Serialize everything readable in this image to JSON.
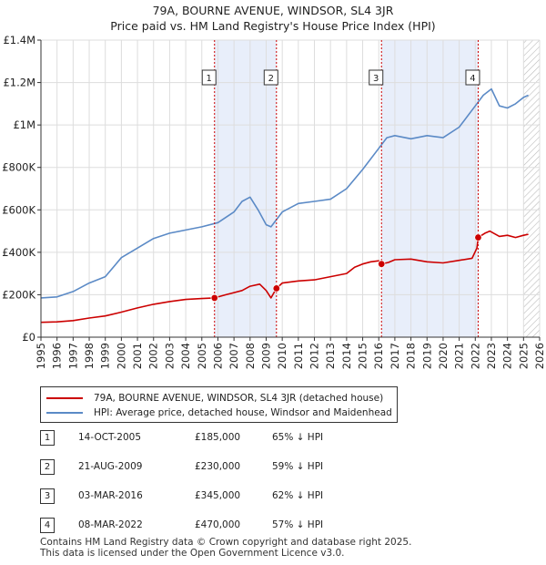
{
  "title": "79A, BOURNE AVENUE, WINDSOR, SL4 3JR",
  "subtitle": "Price paid vs. HM Land Registry's House Price Index (HPI)",
  "colors": {
    "price": "#cc0000",
    "hpi": "#5b8ac6",
    "shade": "#e8eefa"
  },
  "legend": [
    {
      "label": "79A, BOURNE AVENUE, WINDSOR, SL4 3JR (detached house)"
    },
    {
      "label": "HPI: Average price, detached house, Windsor and Maidenhead"
    }
  ],
  "sales": [
    {
      "num": "1",
      "date": "14-OCT-2005",
      "price": "£185,000",
      "hpi": "65% ↓ HPI"
    },
    {
      "num": "2",
      "date": "21-AUG-2009",
      "price": "£230,000",
      "hpi": "59% ↓ HPI"
    },
    {
      "num": "3",
      "date": "03-MAR-2016",
      "price": "£345,000",
      "hpi": "62% ↓ HPI"
    },
    {
      "num": "4",
      "date": "08-MAR-2022",
      "price": "£470,000",
      "hpi": "57% ↓ HPI"
    }
  ],
  "footer": {
    "line1": "Contains HM Land Registry data © Crown copyright and database right 2025.",
    "line2": "This data is licensed under the Open Government Licence v3.0."
  },
  "chart_data": {
    "type": "line",
    "title": "79A, BOURNE AVENUE, WINDSOR, SL4 3JR",
    "subtitle": "Price paid vs. HM Land Registry's House Price Index (HPI)",
    "xlim": [
      1995,
      2026
    ],
    "ylim": [
      0,
      1400000
    ],
    "y_ticks": [
      0,
      200000,
      400000,
      600000,
      800000,
      1000000,
      1200000,
      1400000
    ],
    "y_tick_labels": [
      "£0",
      "£200K",
      "£400K",
      "£600K",
      "£800K",
      "£1M",
      "£1.2M",
      "£1.4M"
    ],
    "x_ticks": [
      "1995",
      "1996",
      "1997",
      "1998",
      "1999",
      "2000",
      "2001",
      "2002",
      "2003",
      "2004",
      "2005",
      "2006",
      "2007",
      "2008",
      "2009",
      "2010",
      "2011",
      "2012",
      "2013",
      "2014",
      "2015",
      "2016",
      "2017",
      "2018",
      "2019",
      "2020",
      "2021",
      "2022",
      "2023",
      "2024",
      "2025",
      "2026"
    ],
    "shaded_ranges": [
      [
        2005.79,
        2009.64
      ],
      [
        2016.17,
        2022.18
      ]
    ],
    "hatched_from": 2025.0,
    "series": [
      {
        "name": "79A, BOURNE AVENUE, WINDSOR, SL4 3JR (detached house)",
        "x": [
          1995.0,
          1996.0,
          1997.0,
          1998.0,
          1999.0,
          2000.0,
          2001.0,
          2002.0,
          2003.0,
          2004.0,
          2005.0,
          2005.79,
          2006.5,
          2007.5,
          2008.0,
          2008.6,
          2009.0,
          2009.3,
          2009.64,
          2010.0,
          2011.0,
          2012.0,
          2013.0,
          2014.0,
          2014.5,
          2015.0,
          2015.5,
          2016.0,
          2016.17,
          2016.6,
          2017.0,
          2018.0,
          2019.0,
          2020.0,
          2021.0,
          2021.8,
          2022.1,
          2022.18,
          2022.6,
          2022.9,
          2023.5,
          2024.0,
          2024.5,
          2025.0,
          2025.3
        ],
        "values": [
          70000,
          72000,
          78000,
          90000,
          100000,
          118000,
          138000,
          155000,
          168000,
          178000,
          182000,
          185000,
          200000,
          220000,
          240000,
          250000,
          220000,
          185000,
          230000,
          255000,
          265000,
          270000,
          285000,
          300000,
          330000,
          345000,
          355000,
          360000,
          345000,
          352000,
          365000,
          368000,
          355000,
          350000,
          362000,
          372000,
          420000,
          470000,
          490000,
          500000,
          475000,
          480000,
          470000,
          480000,
          485000
        ]
      },
      {
        "name": "HPI: Average price, detached house, Windsor and Maidenhead",
        "x": [
          1995.0,
          1996.0,
          1997.0,
          1998.0,
          1999.0,
          2000.0,
          2001.0,
          2002.0,
          2003.0,
          2004.0,
          2005.0,
          2006.0,
          2007.0,
          2007.5,
          2008.0,
          2008.5,
          2009.0,
          2009.3,
          2010.0,
          2011.0,
          2012.0,
          2013.0,
          2014.0,
          2015.0,
          2016.0,
          2016.5,
          2017.0,
          2018.0,
          2019.0,
          2020.0,
          2021.0,
          2022.0,
          2022.5,
          2023.0,
          2023.5,
          2024.0,
          2024.5,
          2025.0,
          2025.3
        ],
        "values": [
          185000,
          190000,
          215000,
          255000,
          285000,
          375000,
          420000,
          465000,
          490000,
          505000,
          520000,
          540000,
          590000,
          640000,
          660000,
          600000,
          530000,
          520000,
          590000,
          630000,
          640000,
          650000,
          700000,
          790000,
          890000,
          940000,
          950000,
          935000,
          950000,
          940000,
          990000,
          1090000,
          1140000,
          1170000,
          1090000,
          1080000,
          1100000,
          1130000,
          1140000
        ]
      }
    ],
    "markers": [
      {
        "label": "1",
        "x": 2005.79,
        "value": 185000
      },
      {
        "label": "2",
        "x": 2009.64,
        "value": 230000
      },
      {
        "label": "3",
        "x": 2016.17,
        "value": 345000
      },
      {
        "label": "4",
        "x": 2022.18,
        "value": 470000
      }
    ]
  }
}
